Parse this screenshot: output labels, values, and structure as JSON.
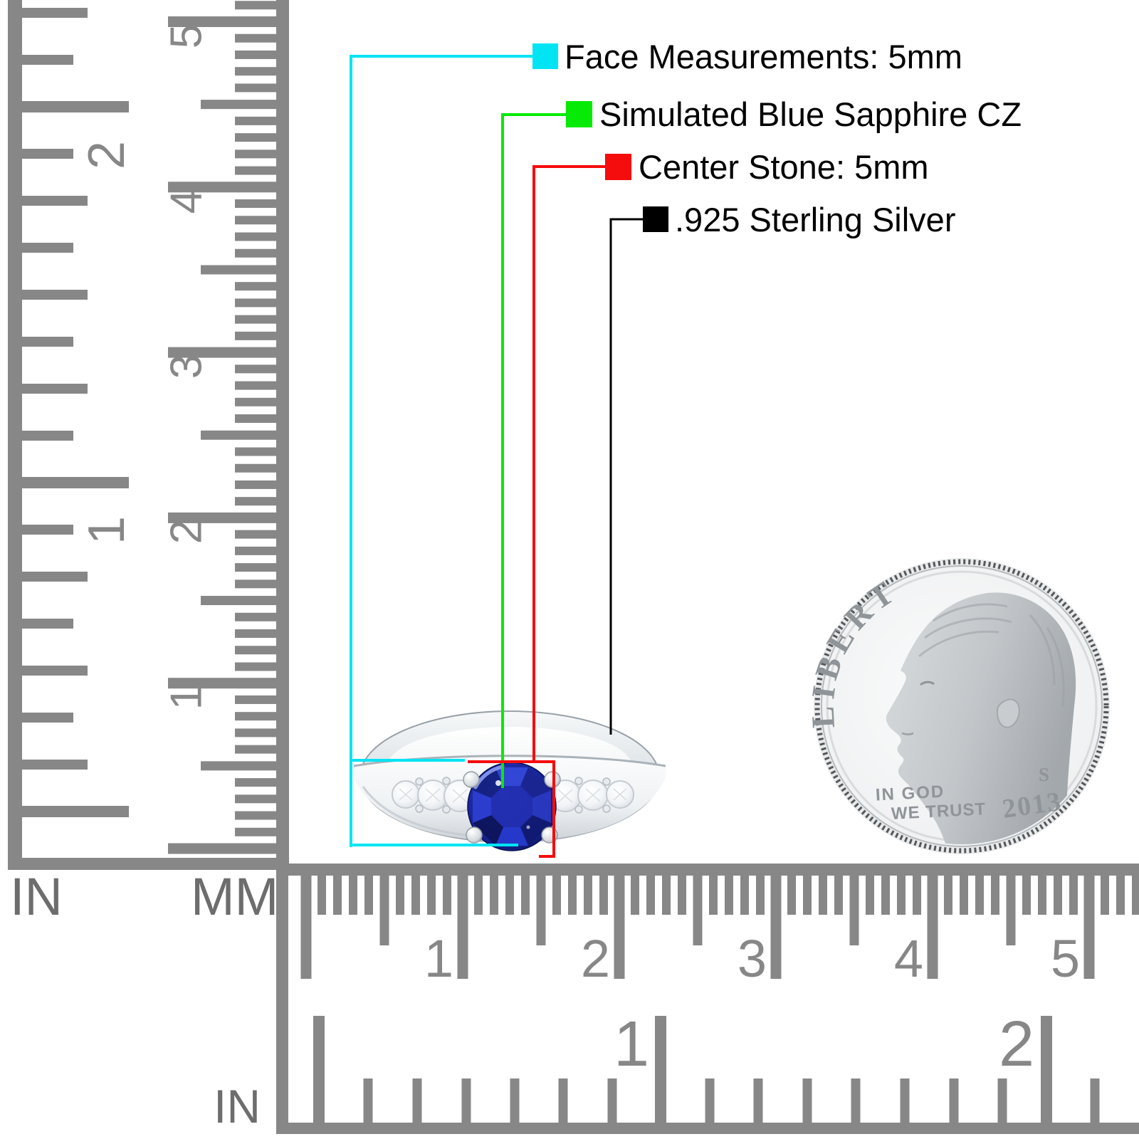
{
  "title": "Ring measurement product image",
  "annotations": [
    {
      "name": "face-measurements",
      "label": "Face Measurements: 5mm",
      "color": "#00e4f4"
    },
    {
      "name": "stone-type",
      "label": "Simulated Blue Sapphire CZ",
      "color": "#06ea06"
    },
    {
      "name": "center-stone",
      "label": "Center Stone: 5mm",
      "color": "#f50c0c"
    },
    {
      "name": "metal",
      "label": ".925 Sterling Silver",
      "color": "#000000"
    }
  ],
  "rulers": {
    "left": {
      "inch_numbers": [
        "1",
        "2"
      ],
      "mm_numbers": [
        "1",
        "2",
        "3",
        "4",
        "5"
      ],
      "inch_unit": "IN",
      "mm_unit": "MM"
    },
    "bottom": {
      "cm_numbers": [
        "1",
        "2",
        "3",
        "4",
        "5"
      ],
      "inch_numbers": [
        "1",
        "2"
      ],
      "inch_unit": "IN"
    }
  },
  "coin": {
    "legend": "LIBERTY",
    "motto_line1": "IN GOD",
    "motto_line2": "WE TRUST",
    "year": "2013",
    "mint_mark": "S"
  },
  "colors": {
    "ruler": "#878787",
    "ruler_label": "#6d6d6d",
    "annotation_text": "#000000",
    "coin_text": "#8f9498",
    "stone_blue": "#1b28a6",
    "silver": "#e9edf0"
  }
}
